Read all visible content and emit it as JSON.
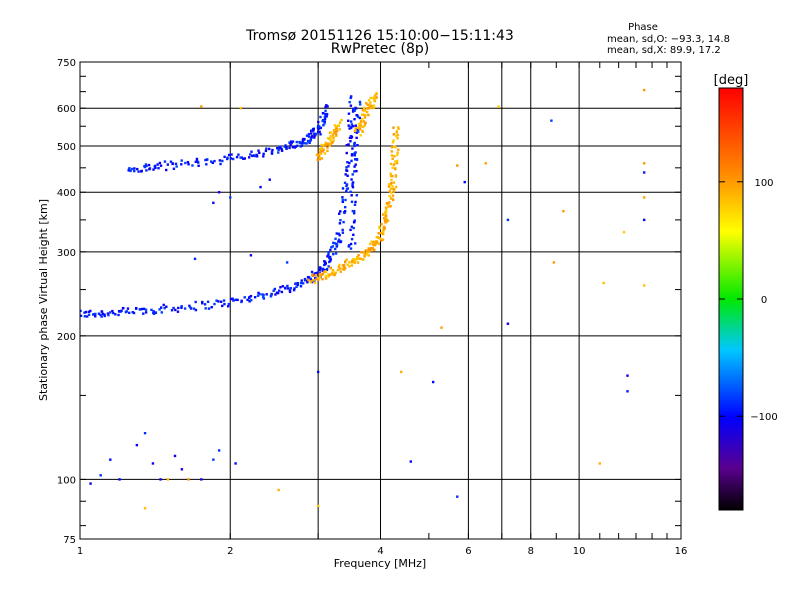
{
  "chart_data": {
    "type": "scatter",
    "title": "Tromsø 20151126 15:10:00−15:11:43",
    "subtitle": "RwPretec (8p)",
    "xlabel": "Frequency [MHz]",
    "ylabel": "Stationary phase Virtual Height [km]",
    "x_scale": "log",
    "y_scale": "log",
    "xlim": [
      1,
      16
    ],
    "ylim": [
      75,
      750
    ],
    "xticks": [
      "1",
      "2",
      "4",
      "6",
      "8",
      "10",
      "16"
    ],
    "xtick_values": [
      1,
      2,
      4,
      6,
      8,
      10,
      16
    ],
    "yticks": [
      "75",
      "100",
      "200",
      "300",
      "400",
      "500",
      "600",
      "750"
    ],
    "ytick_values": [
      75,
      100,
      200,
      300,
      400,
      500,
      600,
      750
    ],
    "grid_x": [
      2,
      3,
      4,
      6,
      7,
      8,
      10
    ],
    "grid_y": [
      100,
      200,
      300,
      400,
      500,
      600
    ],
    "stats": {
      "heading": "Phase",
      "line_o": "mean, sd,O:  −93.3,  14.8",
      "line_x": "mean, sd,X:   89.9,  17.2"
    },
    "colorbar": {
      "label": "[deg]",
      "range": [
        -180,
        180
      ],
      "ticks": [
        "100",
        "0",
        "−100"
      ],
      "tick_values": [
        100,
        0,
        -100
      ]
    },
    "series": [
      {
        "mode": "O",
        "phase": -95,
        "curves": [
          {
            "x": [
              1.0,
              1.2,
              1.5,
              2.0,
              2.5,
              2.9,
              3.1,
              3.3,
              3.45,
              3.52
            ],
            "y": [
              222,
              224,
              228,
              235,
              248,
              262,
              280,
              320,
              450,
              640
            ]
          },
          {
            "x": [
              1.25,
              1.5,
              2.0,
              2.5,
              2.8,
              3.0,
              3.15
            ],
            "y": [
              445,
              455,
              470,
              490,
              510,
              540,
              600
            ]
          },
          {
            "x": [
              3.5,
              3.55,
              3.6
            ],
            "y": [
              300,
              450,
              630
            ]
          }
        ],
        "points": [
          {
            "x": 1.05,
            "y": 98
          },
          {
            "x": 1.1,
            "y": 102
          },
          {
            "x": 1.15,
            "y": 110
          },
          {
            "x": 1.2,
            "y": 100
          },
          {
            "x": 1.3,
            "y": 118
          },
          {
            "x": 1.35,
            "y": 125
          },
          {
            "x": 1.4,
            "y": 108
          },
          {
            "x": 1.45,
            "y": 100
          },
          {
            "x": 1.55,
            "y": 112
          },
          {
            "x": 1.6,
            "y": 105
          },
          {
            "x": 1.75,
            "y": 100
          },
          {
            "x": 1.85,
            "y": 110
          },
          {
            "x": 1.9,
            "y": 115
          },
          {
            "x": 2.05,
            "y": 108
          },
          {
            "x": 1.85,
            "y": 380
          },
          {
            "x": 1.9,
            "y": 400
          },
          {
            "x": 2.0,
            "y": 390
          },
          {
            "x": 2.3,
            "y": 410
          },
          {
            "x": 2.4,
            "y": 425
          },
          {
            "x": 1.7,
            "y": 290
          },
          {
            "x": 2.2,
            "y": 295
          },
          {
            "x": 2.6,
            "y": 285
          },
          {
            "x": 4.6,
            "y": 109
          },
          {
            "x": 5.1,
            "y": 160
          },
          {
            "x": 5.7,
            "y": 92
          },
          {
            "x": 5.9,
            "y": 420
          },
          {
            "x": 7.2,
            "y": 212
          },
          {
            "x": 7.2,
            "y": 350
          },
          {
            "x": 8.8,
            "y": 565
          },
          {
            "x": 12.5,
            "y": 165
          },
          {
            "x": 12.5,
            "y": 153
          },
          {
            "x": 13.5,
            "y": 350
          },
          {
            "x": 13.5,
            "y": 440
          },
          {
            "x": 3.0,
            "y": 168
          }
        ]
      },
      {
        "mode": "X",
        "phase": 90,
        "curves": [
          {
            "x": [
              2.9,
              3.2,
              3.5,
              3.8,
              4.0,
              4.15,
              4.25,
              4.3
            ],
            "y": [
              262,
              272,
              285,
              300,
              325,
              370,
              440,
              550
            ]
          },
          {
            "x": [
              3.6,
              3.75,
              3.9
            ],
            "y": [
              530,
              590,
              640
            ]
          },
          {
            "x": [
              3.0,
              3.15,
              3.3
            ],
            "y": [
              470,
              510,
              560
            ]
          }
        ],
        "points": [
          {
            "x": 1.35,
            "y": 87
          },
          {
            "x": 1.5,
            "y": 100
          },
          {
            "x": 1.65,
            "y": 100
          },
          {
            "x": 2.5,
            "y": 95
          },
          {
            "x": 3.0,
            "y": 88
          },
          {
            "x": 4.3,
            "y": 410
          },
          {
            "x": 4.4,
            "y": 168
          },
          {
            "x": 5.3,
            "y": 208
          },
          {
            "x": 5.7,
            "y": 455
          },
          {
            "x": 6.5,
            "y": 460
          },
          {
            "x": 6.9,
            "y": 605
          },
          {
            "x": 8.9,
            "y": 285
          },
          {
            "x": 9.3,
            "y": 365
          },
          {
            "x": 11.0,
            "y": 108
          },
          {
            "x": 11.2,
            "y": 258
          },
          {
            "x": 12.3,
            "y": 330
          },
          {
            "x": 13.5,
            "y": 255
          },
          {
            "x": 13.5,
            "y": 390
          },
          {
            "x": 13.5,
            "y": 460
          },
          {
            "x": 13.5,
            "y": 655
          },
          {
            "x": 1.75,
            "y": 605
          },
          {
            "x": 2.1,
            "y": 600
          }
        ]
      }
    ]
  }
}
